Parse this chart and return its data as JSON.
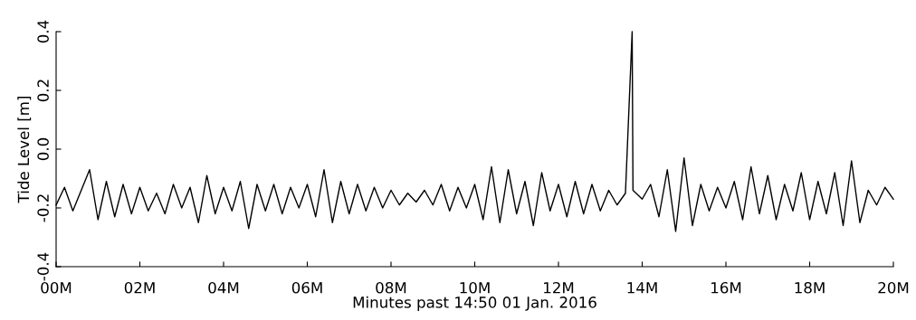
{
  "chart_data": {
    "type": "line",
    "xlabel": "Minutes past 14:50 01 Jan. 2016",
    "ylabel": "Tide Level [m]",
    "x": [
      0.0,
      0.2,
      0.4,
      0.6,
      0.8,
      1.0,
      1.2,
      1.4,
      1.6,
      1.8,
      2.0,
      2.2,
      2.4,
      2.6,
      2.8,
      3.0,
      3.2,
      3.4,
      3.6,
      3.8,
      4.0,
      4.2,
      4.4,
      4.6,
      4.8,
      5.0,
      5.2,
      5.4,
      5.6,
      5.8,
      6.0,
      6.2,
      6.4,
      6.6,
      6.8,
      7.0,
      7.2,
      7.4,
      7.6,
      7.8,
      8.0,
      8.2,
      8.4,
      8.6,
      8.8,
      9.0,
      9.2,
      9.4,
      9.6,
      9.8,
      10.0,
      10.2,
      10.4,
      10.6,
      10.8,
      11.0,
      11.2,
      11.4,
      11.6,
      11.8,
      12.0,
      12.2,
      12.4,
      12.6,
      12.8,
      13.0,
      13.2,
      13.4,
      13.6,
      13.76,
      13.78,
      14.0,
      14.2,
      14.4,
      14.6,
      14.8,
      15.0,
      15.2,
      15.4,
      15.6,
      15.8,
      16.0,
      16.2,
      16.4,
      16.6,
      16.8,
      17.0,
      17.2,
      17.4,
      17.6,
      17.8,
      18.0,
      18.2,
      18.4,
      18.6,
      18.8,
      19.0,
      19.2,
      19.4,
      19.6,
      19.8,
      20.0
    ],
    "series": [
      {
        "color": "#000000",
        "values": [
          -0.19,
          -0.13,
          -0.21,
          -0.14,
          -0.07,
          -0.24,
          -0.11,
          -0.23,
          -0.12,
          -0.22,
          -0.13,
          -0.21,
          -0.15,
          -0.22,
          -0.12,
          -0.2,
          -0.13,
          -0.25,
          -0.09,
          -0.22,
          -0.13,
          -0.21,
          -0.11,
          -0.27,
          -0.12,
          -0.21,
          -0.12,
          -0.22,
          -0.13,
          -0.2,
          -0.12,
          -0.23,
          -0.07,
          -0.25,
          -0.11,
          -0.22,
          -0.12,
          -0.21,
          -0.13,
          -0.2,
          -0.14,
          -0.19,
          -0.15,
          -0.18,
          -0.14,
          -0.19,
          -0.12,
          -0.21,
          -0.13,
          -0.2,
          -0.12,
          -0.24,
          -0.06,
          -0.25,
          -0.07,
          -0.22,
          -0.11,
          -0.26,
          -0.08,
          -0.21,
          -0.12,
          -0.23,
          -0.11,
          -0.22,
          -0.12,
          -0.21,
          -0.14,
          -0.19,
          -0.15,
          0.4,
          -0.14,
          -0.17,
          -0.12,
          -0.23,
          -0.07,
          -0.28,
          -0.03,
          -0.26,
          -0.12,
          -0.21,
          -0.13,
          -0.2,
          -0.11,
          -0.24,
          -0.06,
          -0.22,
          -0.09,
          -0.24,
          -0.12,
          -0.21,
          -0.08,
          -0.24,
          -0.11,
          -0.22,
          -0.08,
          -0.26,
          -0.04,
          -0.25,
          -0.14,
          -0.19,
          -0.13,
          -0.17
        ]
      }
    ],
    "xlim": [
      0,
      20
    ],
    "xticks": [
      {
        "value": 0,
        "label": "00M"
      },
      {
        "value": 2,
        "label": "02M"
      },
      {
        "value": 4,
        "label": "04M"
      },
      {
        "value": 6,
        "label": "06M"
      },
      {
        "value": 8,
        "label": "08M"
      },
      {
        "value": 10,
        "label": "10M"
      },
      {
        "value": 12,
        "label": "12M"
      },
      {
        "value": 14,
        "label": "14M"
      },
      {
        "value": 16,
        "label": "16M"
      },
      {
        "value": 18,
        "label": "18M"
      },
      {
        "value": 20,
        "label": "20M"
      }
    ],
    "ylim": [
      -0.4,
      0.4
    ],
    "yticks": [
      {
        "value": -0.4,
        "label": "-0.4"
      },
      {
        "value": -0.2,
        "label": "-0.2"
      },
      {
        "value": 0,
        "label": "0.0"
      },
      {
        "value": 0.2,
        "label": "0.2"
      },
      {
        "value": 0.4,
        "label": "0.4"
      }
    ],
    "grid": false,
    "legend": false,
    "marker": "none",
    "line_style": "solid"
  }
}
